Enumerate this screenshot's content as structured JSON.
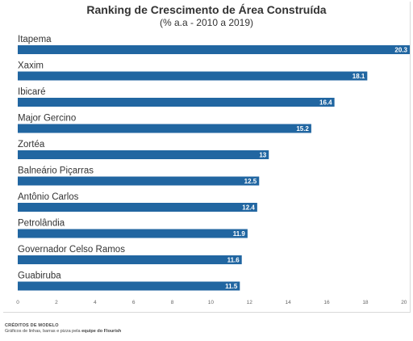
{
  "chart_data": {
    "type": "bar",
    "orientation": "horizontal",
    "title": "Ranking de Crescimento de Área Construída",
    "subtitle": "(% a.a - 2010 a 2019)",
    "categories": [
      "Itapema",
      "Xaxim",
      "Ibicaré",
      "Major Gercino",
      "Zortéa",
      "Balneário Piçarras",
      "Antônio Carlos",
      "Petrolândia",
      "Governador Celso Ramos",
      "Guabiruba"
    ],
    "values": [
      20.3,
      18.1,
      16.4,
      15.2,
      13,
      12.5,
      12.4,
      11.9,
      11.6,
      11.5
    ],
    "value_labels": [
      "20.3",
      "18.1",
      "16.4",
      "15.2",
      "13",
      "12.5",
      "12.4",
      "11.9",
      "11.6",
      "11.5"
    ],
    "xlim": [
      0,
      20.3
    ],
    "xticks": [
      0,
      2,
      4,
      6,
      8,
      10,
      12,
      14,
      16,
      18,
      20
    ],
    "bar_color": "#2166a1",
    "grid": false,
    "legend": "none"
  },
  "footer": {
    "credits": "CRÉDITOS DE MODELO",
    "text_prefix": "Gráficos de linhas, barras e pizza pela ",
    "text_bold": "equipe do Flourish"
  }
}
